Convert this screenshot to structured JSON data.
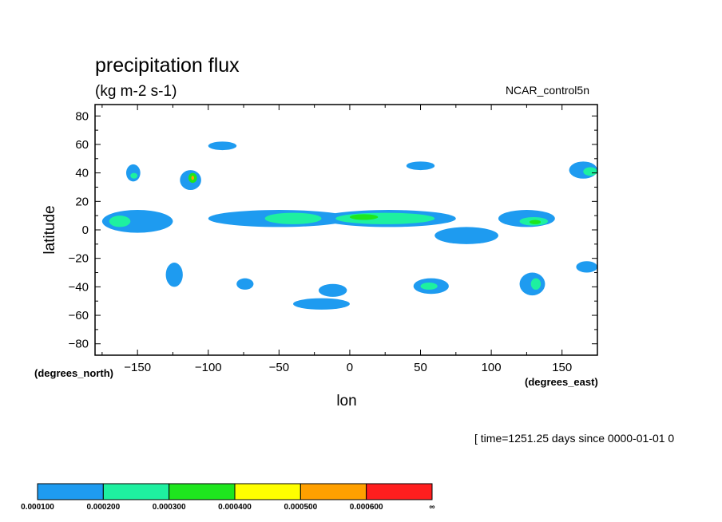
{
  "header": {
    "title": "precipitation flux",
    "units": "(kg m-2 s-1)",
    "dataset": "NCAR_control5n"
  },
  "footer": {
    "time_note": "[ time=1251.25 days since 0000-01-01 0"
  },
  "chart_data": {
    "type": "heatmap",
    "title": "precipitation flux",
    "units": "(kg m-2 s-1)",
    "xlabel": "lon",
    "ylabel": "latitude",
    "xunits": "(degrees_east)",
    "yunits": "(degrees_north)",
    "xlim": [
      -180,
      175
    ],
    "ylim": [
      -88,
      88
    ],
    "xticks": [
      -150,
      -100,
      -50,
      0,
      50,
      100,
      150
    ],
    "yticks": [
      80,
      60,
      40,
      20,
      0,
      -20,
      -40,
      -60,
      -80
    ],
    "colorbar": {
      "levels": [
        "0.000100",
        "0.000200",
        "0.000300",
        "0.000400",
        "0.000500",
        "0.000600",
        "∞"
      ],
      "colors": [
        "#1e9bf0",
        "#1ef0a0",
        "#1ee61e",
        "#ffff00",
        "#ffa000",
        "#ff1e1e"
      ]
    },
    "regions": [
      {
        "lon": [
          -175,
          -125
        ],
        "lat": [
          -2,
          14
        ],
        "level": 1
      },
      {
        "lon": [
          -170,
          -155
        ],
        "lat": [
          2,
          10
        ],
        "level": 2
      },
      {
        "lon": [
          -158,
          -148
        ],
        "lat": [
          34,
          46
        ],
        "level": 1
      },
      {
        "lon": [
          -155,
          -150
        ],
        "lat": [
          36,
          40
        ],
        "level": 2
      },
      {
        "lon": [
          -120,
          -105
        ],
        "lat": [
          28,
          42
        ],
        "level": 1
      },
      {
        "lon": [
          -114,
          -108
        ],
        "lat": [
          33,
          40
        ],
        "level": 3
      },
      {
        "lon": [
          -112,
          -110
        ],
        "lat": [
          35,
          38
        ],
        "level": 5
      },
      {
        "lon": [
          -100,
          -80
        ],
        "lat": [
          56,
          62
        ],
        "level": 1
      },
      {
        "lon": [
          -100,
          0
        ],
        "lat": [
          2,
          14
        ],
        "level": 1
      },
      {
        "lon": [
          -60,
          -20
        ],
        "lat": [
          4,
          12
        ],
        "level": 2
      },
      {
        "lon": [
          -20,
          75
        ],
        "lat": [
          2,
          14
        ],
        "level": 1
      },
      {
        "lon": [
          -10,
          60
        ],
        "lat": [
          4,
          12
        ],
        "level": 2
      },
      {
        "lon": [
          0,
          20
        ],
        "lat": [
          7,
          11
        ],
        "level": 3
      },
      {
        "lon": [
          40,
          60
        ],
        "lat": [
          42,
          48
        ],
        "level": 1
      },
      {
        "lon": [
          105,
          145
        ],
        "lat": [
          2,
          14
        ],
        "level": 1
      },
      {
        "lon": [
          120,
          140
        ],
        "lat": [
          3,
          9
        ],
        "level": 2
      },
      {
        "lon": [
          127,
          135
        ],
        "lat": [
          4,
          7
        ],
        "level": 3
      },
      {
        "lon": [
          155,
          175
        ],
        "lat": [
          36,
          48
        ],
        "level": 1
      },
      {
        "lon": [
          165,
          175
        ],
        "lat": [
          38,
          44
        ],
        "level": 2
      },
      {
        "lon": [
          -130,
          -118
        ],
        "lat": [
          -40,
          -23
        ],
        "level": 1
      },
      {
        "lon": [
          -80,
          -68
        ],
        "lat": [
          -42,
          -34
        ],
        "level": 1
      },
      {
        "lon": [
          -22,
          -2
        ],
        "lat": [
          -47,
          -38
        ],
        "level": 1
      },
      {
        "lon": [
          -40,
          0
        ],
        "lat": [
          -56,
          -48
        ],
        "level": 1
      },
      {
        "lon": [
          45,
          70
        ],
        "lat": [
          -45,
          -34
        ],
        "level": 1
      },
      {
        "lon": [
          50,
          62
        ],
        "lat": [
          -42,
          -37
        ],
        "level": 2
      },
      {
        "lon": [
          120,
          138
        ],
        "lat": [
          -46,
          -30
        ],
        "level": 1
      },
      {
        "lon": [
          128,
          135
        ],
        "lat": [
          -42,
          -34
        ],
        "level": 2
      },
      {
        "lon": [
          160,
          175
        ],
        "lat": [
          -30,
          -22
        ],
        "level": 1
      },
      {
        "lon": [
          60,
          105
        ],
        "lat": [
          -10,
          2
        ],
        "level": 1
      }
    ]
  }
}
